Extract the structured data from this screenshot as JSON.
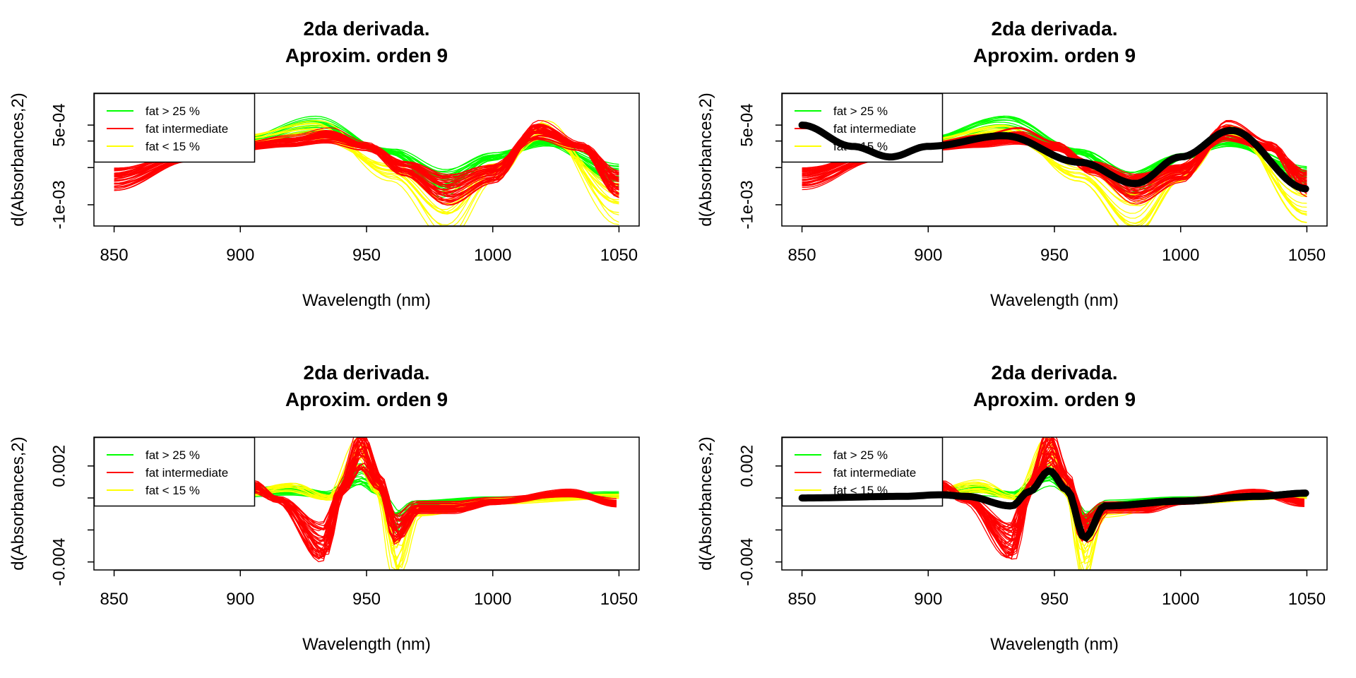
{
  "colors": {
    "high": "#00ff00",
    "mid": "#ff0000",
    "low": "#ffff00",
    "mean": "#000000"
  },
  "legend_entries": [
    "fat > 25 %",
    "fat intermediate",
    "fat < 15 %"
  ],
  "chart_data": [
    {
      "type": "line",
      "title_line1": "2da derivada.",
      "title_line2": "Aproxim. orden 9",
      "xlabel": "Wavelength (nm)",
      "ylabel": "d(Absorbances,2)",
      "xlim": [
        850,
        1050
      ],
      "ylim": [
        -0.0014,
        0.0011
      ],
      "xticks": [
        850,
        900,
        950,
        1000,
        1050
      ],
      "xtick_labels": [
        "850",
        "900",
        "950",
        "1000",
        "1050"
      ],
      "yticks": [
        -0.001,
        -0.0003,
        0.0002,
        0.0005
      ],
      "ytick_labels": [
        "-1e-03",
        "",
        "",
        "5e-04"
      ],
      "legend_position": "top-left",
      "show_mean": false,
      "profiles": {
        "high": {
          "x": [
            850,
            900,
            930,
            960,
            980,
            1000,
            1020,
            1050
          ],
          "y": [
            0.0001,
            0.0002,
            0.0005,
            0.0,
            -0.0006,
            -0.0001,
            0.0002,
            -0.00045
          ]
        },
        "mid": {
          "x": [
            850,
            880,
            900,
            920,
            935,
            950,
            965,
            982,
            1000,
            1018,
            1035,
            1050
          ],
          "y": [
            -0.0005,
            -0.0001,
            0.0001,
            0.0002,
            0.0003,
            0.0001,
            -0.0003,
            -0.0007,
            -0.0004,
            0.0004,
            0.0001,
            -0.0006
          ]
        },
        "low": {
          "x": [
            850,
            900,
            930,
            960,
            982,
            1000,
            1020,
            1050
          ],
          "y": [
            0.0001,
            0.0002,
            0.0004,
            -0.0004,
            -0.0012,
            -0.0004,
            0.0004,
            -0.001
          ]
        }
      }
    },
    {
      "type": "line",
      "title_line1": "2da derivada.",
      "title_line2": "Aproxim. orden 9",
      "xlabel": "Wavelength (nm)",
      "ylabel": "d(Absorbances,2)",
      "xlim": [
        850,
        1050
      ],
      "ylim": [
        -0.0014,
        0.0011
      ],
      "xticks": [
        850,
        900,
        950,
        1000,
        1050
      ],
      "xtick_labels": [
        "850",
        "900",
        "950",
        "1000",
        "1050"
      ],
      "yticks": [
        -0.001,
        -0.0003,
        0.0002,
        0.0005
      ],
      "ytick_labels": [
        "-1e-03",
        "",
        "",
        "5e-04"
      ],
      "legend_position": "top-left",
      "show_mean": true,
      "mean": {
        "x": [
          850,
          870,
          885,
          900,
          930,
          960,
          982,
          1000,
          1020,
          1050
        ],
        "y": [
          0.0005,
          0.0001,
          -0.0001,
          0.0001,
          0.0003,
          -0.0002,
          -0.0006,
          -0.0001,
          0.0004,
          -0.0007
        ]
      },
      "profiles": {
        "high": {
          "x": [
            850,
            900,
            930,
            960,
            980,
            1000,
            1020,
            1050
          ],
          "y": [
            0.0001,
            0.0002,
            0.0005,
            0.0,
            -0.0006,
            -0.0001,
            0.0002,
            -0.00045
          ]
        },
        "mid": {
          "x": [
            850,
            880,
            900,
            920,
            935,
            950,
            965,
            982,
            1000,
            1018,
            1035,
            1050
          ],
          "y": [
            -0.0005,
            -0.0001,
            0.0001,
            0.0002,
            0.0003,
            0.0001,
            -0.0003,
            -0.0007,
            -0.0004,
            0.0004,
            0.0001,
            -0.0006
          ]
        },
        "low": {
          "x": [
            850,
            900,
            930,
            960,
            982,
            1000,
            1020,
            1050
          ],
          "y": [
            0.0001,
            0.0002,
            0.0004,
            -0.0004,
            -0.0012,
            -0.0004,
            0.0004,
            -0.001
          ]
        }
      }
    },
    {
      "type": "line",
      "title_line1": "2da derivada.",
      "title_line2": "Aproxim. orden 9",
      "xlabel": "Wavelength (nm)",
      "ylabel": "d(Absorbances,2)",
      "xlim": [
        850,
        1050
      ],
      "ylim": [
        -0.0045,
        0.0038
      ],
      "xticks": [
        850,
        900,
        950,
        1000,
        1050
      ],
      "xtick_labels": [
        "850",
        "900",
        "950",
        "1000",
        "1050"
      ],
      "yticks": [
        -0.004,
        -0.002,
        0.0,
        0.002
      ],
      "ytick_labels": [
        "-0.004",
        "",
        "",
        "0.002"
      ],
      "legend_position": "top-left",
      "show_mean": false,
      "profiles": {
        "high": {
          "x": [
            900,
            920,
            935,
            948,
            955,
            962,
            970,
            1000,
            1050
          ],
          "y": [
            0.0003,
            0.0005,
            0.0002,
            0.0015,
            0.0005,
            -0.0015,
            -0.0004,
            -0.0001,
            0.0002
          ]
        },
        "mid": {
          "x": [
            905,
            915,
            933,
            940,
            948,
            955,
            962,
            970,
            985,
            1000,
            1030,
            1050
          ],
          "y": [
            0.0007,
            -0.0001,
            -0.0028,
            0.0005,
            0.003,
            0.001,
            -0.002,
            -0.0006,
            -0.0006,
            -0.0002,
            0.0003,
            -0.0003
          ]
        },
        "low": {
          "x": [
            900,
            920,
            935,
            948,
            955,
            962,
            970,
            1000,
            1050
          ],
          "y": [
            0.0002,
            0.0007,
            0.0,
            0.0028,
            0.0005,
            -0.0038,
            -0.0008,
            -0.0002,
            0.0001
          ]
        }
      }
    },
    {
      "type": "line",
      "title_line1": "2da derivada.",
      "title_line2": "Aproxim. orden 9",
      "xlabel": "Wavelength (nm)",
      "ylabel": "d(Absorbances,2)",
      "xlim": [
        850,
        1050
      ],
      "ylim": [
        -0.0045,
        0.0038
      ],
      "xticks": [
        850,
        900,
        950,
        1000,
        1050
      ],
      "xtick_labels": [
        "850",
        "900",
        "950",
        "1000",
        "1050"
      ],
      "yticks": [
        -0.004,
        -0.002,
        0.0,
        0.002
      ],
      "ytick_labels": [
        "-0.004",
        "",
        "",
        "0.002"
      ],
      "legend_position": "top-left",
      "show_mean": true,
      "mean": {
        "x": [
          850,
          890,
          905,
          915,
          933,
          940,
          948,
          955,
          962,
          970,
          1000,
          1030,
          1050
        ],
        "y": [
          0.0,
          0.0001,
          0.0002,
          0.0001,
          -0.0005,
          0.0004,
          0.0017,
          0.0005,
          -0.0025,
          -0.0005,
          -0.0002,
          0.0001,
          0.0003
        ]
      },
      "profiles": {
        "high": {
          "x": [
            900,
            920,
            935,
            948,
            955,
            962,
            970,
            1000,
            1050
          ],
          "y": [
            0.0003,
            0.0005,
            0.0002,
            0.0015,
            0.0005,
            -0.0015,
            -0.0004,
            -0.0001,
            0.0002
          ]
        },
        "mid": {
          "x": [
            905,
            915,
            933,
            940,
            948,
            955,
            962,
            970,
            985,
            1000,
            1030,
            1050
          ],
          "y": [
            0.0007,
            -0.0001,
            -0.0028,
            0.0005,
            0.003,
            0.001,
            -0.002,
            -0.0006,
            -0.0006,
            -0.0002,
            0.0003,
            -0.0003
          ]
        },
        "low": {
          "x": [
            900,
            920,
            935,
            948,
            955,
            962,
            970,
            1000,
            1050
          ],
          "y": [
            0.0002,
            0.0007,
            0.0,
            0.0028,
            0.0005,
            -0.0038,
            -0.0008,
            -0.0002,
            0.0001
          ]
        }
      }
    }
  ]
}
